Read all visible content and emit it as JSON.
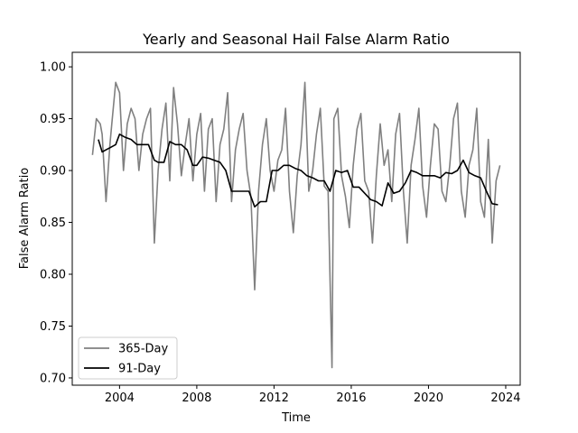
{
  "chart_data": {
    "type": "line",
    "title": "Yearly and Seasonal Hail False Alarm Ratio",
    "xlabel": "Time",
    "ylabel": "False Alarm Ratio",
    "xlim": [
      2001.55,
      2024.75
    ],
    "ylim": [
      0.693,
      1.014
    ],
    "xticks": [
      2004,
      2008,
      2012,
      2016,
      2020,
      2024
    ],
    "yticks": [
      0.7,
      0.75,
      0.8,
      0.85,
      0.9,
      0.95,
      1.0
    ],
    "ytick_labels": [
      "0.70",
      "0.75",
      "0.80",
      "0.85",
      "0.90",
      "0.95",
      "1.00"
    ],
    "grid": false,
    "legend_position": "lower-left",
    "series": [
      {
        "name": "365-Day",
        "color": "#808080",
        "x": [
          2002.6,
          2002.8,
          2003.0,
          2003.1,
          2003.3,
          2003.5,
          2003.6,
          2003.8,
          2004.0,
          2004.2,
          2004.4,
          2004.6,
          2004.8,
          2005.0,
          2005.2,
          2005.4,
          2005.6,
          2005.8,
          2006.0,
          2006.2,
          2006.4,
          2006.6,
          2006.8,
          2007.0,
          2007.2,
          2007.4,
          2007.6,
          2007.8,
          2008.0,
          2008.2,
          2008.4,
          2008.6,
          2008.8,
          2009.0,
          2009.2,
          2009.4,
          2009.6,
          2009.8,
          2010.0,
          2010.2,
          2010.4,
          2010.6,
          2010.8,
          2011.0,
          2011.2,
          2011.4,
          2011.6,
          2011.8,
          2012.0,
          2012.2,
          2012.4,
          2012.6,
          2012.8,
          2013.0,
          2013.2,
          2013.4,
          2013.6,
          2013.8,
          2014.0,
          2014.2,
          2014.4,
          2014.6,
          2014.8,
          2015.0,
          2015.1,
          2015.3,
          2015.5,
          2015.7,
          2015.9,
          2016.1,
          2016.3,
          2016.5,
          2016.7,
          2016.9,
          2017.1,
          2017.3,
          2017.5,
          2017.7,
          2017.9,
          2018.1,
          2018.3,
          2018.5,
          2018.7,
          2018.9,
          2019.1,
          2019.3,
          2019.5,
          2019.7,
          2019.9,
          2020.1,
          2020.3,
          2020.5,
          2020.7,
          2020.9,
          2021.1,
          2021.3,
          2021.5,
          2021.7,
          2021.9,
          2022.1,
          2022.3,
          2022.5,
          2022.7,
          2022.9,
          2023.1,
          2023.3,
          2023.5,
          2023.7
        ],
        "values": [
          0.915,
          0.95,
          0.945,
          0.935,
          0.87,
          0.925,
          0.945,
          0.985,
          0.975,
          0.9,
          0.945,
          0.96,
          0.95,
          0.9,
          0.935,
          0.95,
          0.96,
          0.83,
          0.9,
          0.94,
          0.965,
          0.89,
          0.98,
          0.945,
          0.895,
          0.925,
          0.95,
          0.89,
          0.935,
          0.955,
          0.88,
          0.94,
          0.95,
          0.87,
          0.925,
          0.94,
          0.975,
          0.87,
          0.92,
          0.94,
          0.955,
          0.9,
          0.875,
          0.785,
          0.88,
          0.925,
          0.95,
          0.9,
          0.88,
          0.91,
          0.92,
          0.96,
          0.88,
          0.84,
          0.895,
          0.925,
          0.985,
          0.88,
          0.9,
          0.935,
          0.96,
          0.885,
          0.88,
          0.71,
          0.95,
          0.96,
          0.895,
          0.875,
          0.845,
          0.905,
          0.94,
          0.955,
          0.89,
          0.88,
          0.83,
          0.895,
          0.945,
          0.905,
          0.92,
          0.87,
          0.935,
          0.955,
          0.88,
          0.83,
          0.905,
          0.93,
          0.96,
          0.885,
          0.855,
          0.905,
          0.945,
          0.94,
          0.88,
          0.87,
          0.905,
          0.95,
          0.965,
          0.88,
          0.855,
          0.905,
          0.92,
          0.96,
          0.87,
          0.855,
          0.93,
          0.83,
          0.89,
          0.905
        ]
      },
      {
        "name": "91-Day",
        "color": "#000000",
        "x": [
          2002.9,
          2003.1,
          2003.3,
          2003.5,
          2003.8,
          2004.0,
          2004.3,
          2004.6,
          2004.9,
          2005.2,
          2005.5,
          2005.8,
          2006.0,
          2006.3,
          2006.6,
          2006.9,
          2007.2,
          2007.5,
          2007.8,
          2008.0,
          2008.3,
          2008.6,
          2008.9,
          2009.2,
          2009.5,
          2009.8,
          2010.1,
          2010.4,
          2010.7,
          2011.0,
          2011.3,
          2011.6,
          2011.9,
          2012.2,
          2012.5,
          2012.8,
          2013.1,
          2013.4,
          2013.7,
          2014.0,
          2014.3,
          2014.6,
          2014.9,
          2015.2,
          2015.5,
          2015.8,
          2016.1,
          2016.4,
          2016.7,
          2017.0,
          2017.3,
          2017.6,
          2017.9,
          2018.2,
          2018.5,
          2018.8,
          2019.1,
          2019.4,
          2019.7,
          2020.0,
          2020.3,
          2020.6,
          2020.9,
          2021.2,
          2021.5,
          2021.8,
          2022.1,
          2022.4,
          2022.7,
          2023.0,
          2023.3,
          2023.6
        ],
        "values": [
          0.93,
          0.918,
          0.92,
          0.922,
          0.925,
          0.935,
          0.932,
          0.93,
          0.925,
          0.925,
          0.925,
          0.91,
          0.908,
          0.908,
          0.928,
          0.925,
          0.925,
          0.92,
          0.905,
          0.905,
          0.913,
          0.912,
          0.91,
          0.908,
          0.9,
          0.88,
          0.88,
          0.88,
          0.88,
          0.865,
          0.87,
          0.87,
          0.9,
          0.9,
          0.905,
          0.905,
          0.902,
          0.9,
          0.895,
          0.893,
          0.89,
          0.89,
          0.88,
          0.9,
          0.898,
          0.9,
          0.884,
          0.884,
          0.878,
          0.872,
          0.87,
          0.866,
          0.888,
          0.878,
          0.88,
          0.888,
          0.9,
          0.898,
          0.895,
          0.895,
          0.895,
          0.893,
          0.898,
          0.897,
          0.9,
          0.91,
          0.898,
          0.895,
          0.893,
          0.88,
          0.868,
          0.867
        ]
      }
    ]
  }
}
